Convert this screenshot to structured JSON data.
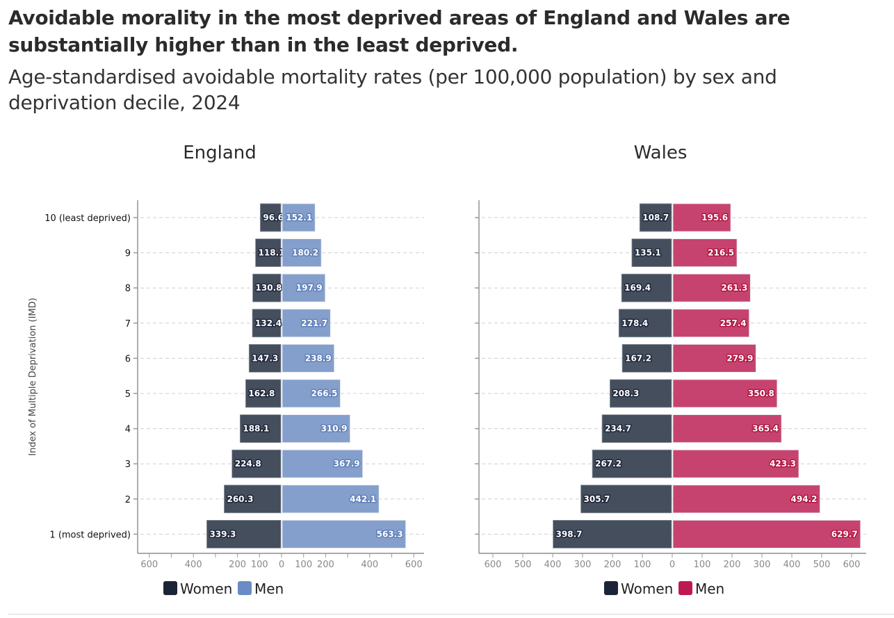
{
  "header": {
    "title": "Avoidable morality in the most deprived areas of England and Wales are substantially higher than in the least deprived.",
    "subtitle": "Age-standardised avoidable mortality rates (per 100,000 population) by sex and deprivation decile, 2024"
  },
  "colors": {
    "women": "#444e5c",
    "women_legend": "#1c2438",
    "england_men": "#849fcb",
    "england_men_legend": "#6a8cc4",
    "wales_men": "#c7436f",
    "wales_men_legend": "#bf1a50",
    "women_label_stroke": "#1c2438",
    "england_label_stroke": "#5f7fb8",
    "wales_label_stroke": "#b0143f"
  },
  "chart_data": [
    {
      "type": "bar",
      "orientation": "horizontal-diverging",
      "title": "England",
      "ylabel": "Index of Multiple Deprivation (IMD)",
      "xlabel": "",
      "categories": [
        "10 (least deprived)",
        "9",
        "8",
        "7",
        "6",
        "5",
        "4",
        "3",
        "2",
        "1 (most deprived)"
      ],
      "series": [
        {
          "name": "Women",
          "side": "left",
          "values": [
            96.6,
            118.1,
            130.8,
            132.4,
            147.3,
            162.8,
            188.1,
            224.8,
            260.3,
            339.3
          ],
          "labels": [
            "96.6",
            "118.1",
            "130.8",
            "132.4",
            "147.3",
            "162.8",
            "188.1",
            "224.8",
            "260.3",
            "339.3"
          ]
        },
        {
          "name": "Men",
          "side": "right",
          "values": [
            152.1,
            180.2,
            197.9,
            221.7,
            238.9,
            266.5,
            310.9,
            367.9,
            442.1,
            563.3
          ],
          "labels": [
            "152.1",
            "180.2",
            "197.9",
            "221.7",
            "238.9",
            "266.5",
            "310.9",
            "367.9",
            "442.1",
            "563.3"
          ]
        }
      ],
      "xlim": [
        -600,
        600
      ],
      "xticks": [
        -600,
        -500,
        -400,
        -300,
        -200,
        -100,
        0,
        100,
        200,
        300,
        400,
        500,
        600
      ],
      "xtick_labels": [
        "600",
        "",
        "400",
        "",
        "200",
        "100",
        "0",
        "100",
        "200",
        "",
        "400",
        "",
        "600"
      ],
      "grid": "horizontal dashed",
      "legend": {
        "placement": "bottom-left",
        "entries": [
          "Women",
          "Men"
        ]
      }
    },
    {
      "type": "bar",
      "orientation": "horizontal-diverging",
      "title": "Wales",
      "ylabel": "",
      "xlabel": "",
      "categories": [
        "10 (least deprived)",
        "9",
        "8",
        "7",
        "6",
        "5",
        "4",
        "3",
        "2",
        "1 (most deprived)"
      ],
      "series": [
        {
          "name": "Women",
          "side": "left",
          "values": [
            108.7,
            135.1,
            169.4,
            178.4,
            167.2,
            208.3,
            234.7,
            267.2,
            305.7,
            398.7
          ],
          "labels": [
            "108.7",
            "135.1",
            "169.4",
            "178.4",
            "167.2",
            "208.3",
            "234.7",
            "267.2",
            "305.7",
            "398.7"
          ]
        },
        {
          "name": "Men",
          "side": "right",
          "values": [
            195.6,
            216.5,
            261.3,
            257.4,
            279.9,
            350.8,
            365.4,
            423.3,
            494.2,
            629.7
          ],
          "labels": [
            "195.6",
            "216.5",
            "261.3",
            "257.4",
            "279.9",
            "350.8",
            "365.4",
            "423.3",
            "494.2",
            "629.7"
          ]
        }
      ],
      "xlim": [
        -650,
        650
      ],
      "xticks": [
        -600,
        -500,
        -400,
        -300,
        -200,
        -100,
        0,
        100,
        200,
        300,
        400,
        500,
        600
      ],
      "xtick_labels": [
        "600",
        "500",
        "400",
        "300",
        "200",
        "100",
        "0",
        "100",
        "200",
        "300",
        "400",
        "500",
        "600"
      ],
      "grid": "horizontal dashed",
      "legend": {
        "placement": "bottom-left",
        "entries": [
          "Women",
          "Men"
        ]
      }
    }
  ]
}
